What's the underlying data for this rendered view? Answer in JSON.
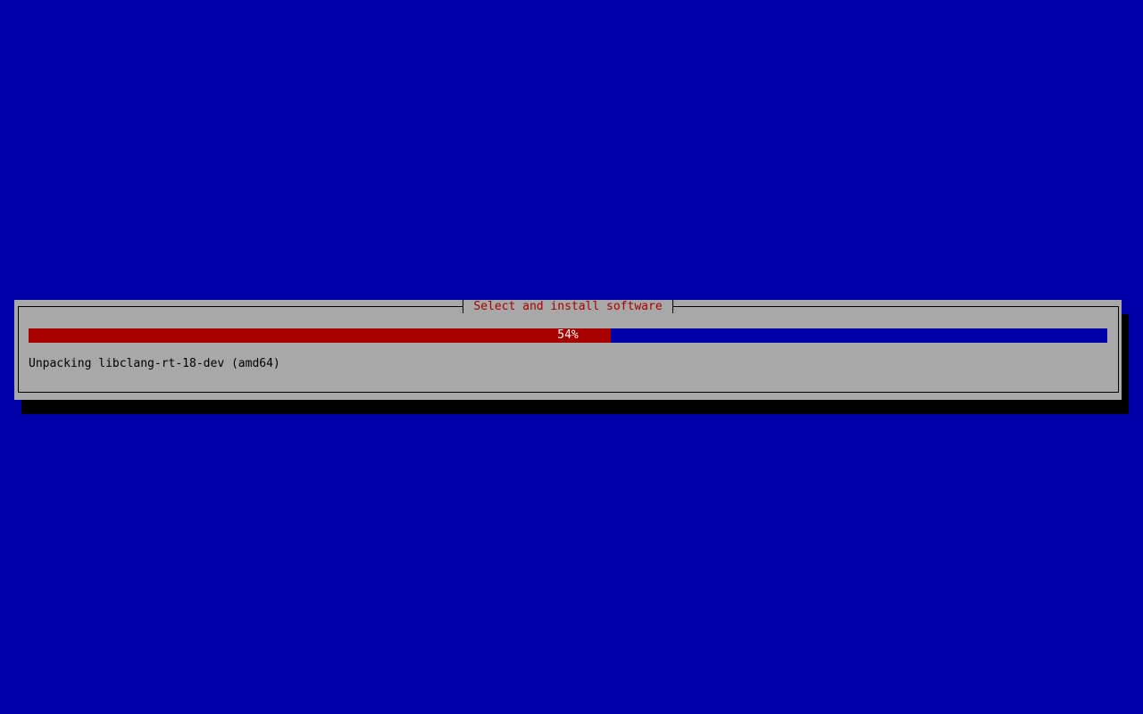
{
  "dialog": {
    "title": "Select and install software",
    "progress": {
      "percent": 54,
      "label": "54%"
    },
    "status": "Unpacking libclang-rt-18-dev (amd64)"
  },
  "colors": {
    "background": "#0000a8",
    "dialog": "#a8a8a8",
    "progress_fill": "#a80000",
    "title": "#a80000"
  }
}
